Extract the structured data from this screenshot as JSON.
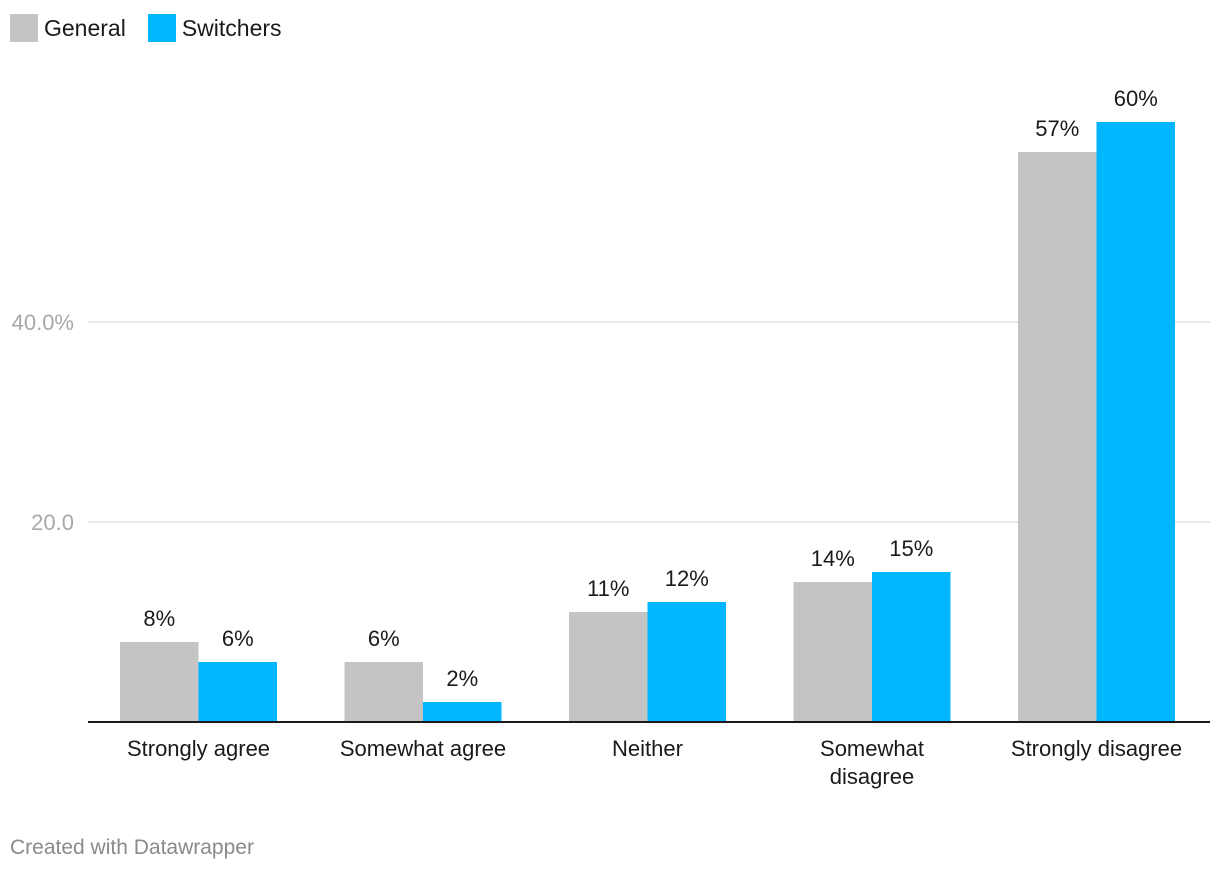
{
  "chart_data": {
    "type": "bar",
    "categories": [
      [
        "Strongly agree"
      ],
      [
        "Somewhat agree"
      ],
      [
        "Neither"
      ],
      [
        "Somewhat",
        "disagree"
      ],
      [
        "Strongly disagree"
      ]
    ],
    "series": [
      {
        "name": "General",
        "color": "#c4c4c4",
        "values": [
          8,
          6,
          11,
          14,
          57
        ],
        "labels": [
          "8%",
          "6%",
          "11%",
          "14%",
          "57%"
        ]
      },
      {
        "name": "Switchers",
        "color": "#00b6ff",
        "values": [
          6,
          2,
          12,
          15,
          60
        ],
        "labels": [
          "6%",
          "2%",
          "12%",
          "15%",
          "60%"
        ]
      }
    ],
    "yticks": [
      {
        "value": 20,
        "label": "20.0"
      },
      {
        "value": 40,
        "label": "40.0%"
      }
    ],
    "ylim": [
      0,
      60
    ],
    "legend": "top-left",
    "grid": true
  },
  "footer": {
    "credit": "Created with Datawrapper"
  }
}
